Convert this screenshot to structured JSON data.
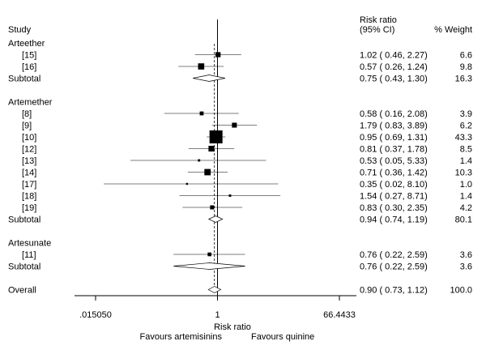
{
  "chart_data": {
    "type": "forest",
    "header": {
      "study": "Study",
      "ratio_line1": "Risk ratio",
      "ratio_line2": "(95% CI)",
      "weight": "% Weight"
    },
    "x_scale": "log",
    "x_ticks": [
      {
        "value": 0.01505,
        "label": ".015050"
      },
      {
        "value": 1,
        "label": "1"
      },
      {
        "value": 66.4433,
        "label": "66.4433"
      }
    ],
    "xlabel": "Risk ratio",
    "favours_left": "Favours artemisinins",
    "favours_right": "Favours quinine",
    "pooled_line": 0.9,
    "rows": [
      {
        "kind": "group",
        "label": "Arteether"
      },
      {
        "kind": "study",
        "label": "[15]",
        "rr": 1.02,
        "lo": 0.46,
        "hi": 2.27,
        "ci_text": "1.02 ( 0.46, 2.27)",
        "weight": 6.6,
        "weight_text": "6.6"
      },
      {
        "kind": "study",
        "label": "[16]",
        "rr": 0.57,
        "lo": 0.26,
        "hi": 1.24,
        "ci_text": "0.57 ( 0.26, 1.24)",
        "weight": 9.8,
        "weight_text": "9.8"
      },
      {
        "kind": "subtotal",
        "label": "Subtotal",
        "rr": 0.75,
        "lo": 0.43,
        "hi": 1.3,
        "ci_text": "0.75 ( 0.43, 1.30)",
        "weight_text": "16.3"
      },
      {
        "kind": "gap"
      },
      {
        "kind": "group",
        "label": "Artemether"
      },
      {
        "kind": "study",
        "label": "[8]",
        "rr": 0.58,
        "lo": 0.16,
        "hi": 2.08,
        "ci_text": "0.58 ( 0.16, 2.08)",
        "weight": 3.9,
        "weight_text": "3.9"
      },
      {
        "kind": "study",
        "label": "[9]",
        "rr": 1.79,
        "lo": 0.83,
        "hi": 3.89,
        "ci_text": "1.79 ( 0.83, 3.89)",
        "weight": 6.2,
        "weight_text": "6.2"
      },
      {
        "kind": "study",
        "label": "[10]",
        "rr": 0.95,
        "lo": 0.69,
        "hi": 1.31,
        "ci_text": "0.95 ( 0.69, 1.31)",
        "weight": 43.3,
        "weight_text": "43.3"
      },
      {
        "kind": "study",
        "label": "[12]",
        "rr": 0.81,
        "lo": 0.37,
        "hi": 1.78,
        "ci_text": "0.81 ( 0.37, 1.78)",
        "weight": 8.5,
        "weight_text": "8.5"
      },
      {
        "kind": "study",
        "label": "[13]",
        "rr": 0.53,
        "lo": 0.05,
        "hi": 5.33,
        "ci_text": "0.53 ( 0.05, 5.33)",
        "weight": 1.4,
        "weight_text": "1.4"
      },
      {
        "kind": "study",
        "label": "[14]",
        "rr": 0.71,
        "lo": 0.36,
        "hi": 1.42,
        "ci_text": "0.71 ( 0.36, 1.42)",
        "weight": 10.3,
        "weight_text": "10.3"
      },
      {
        "kind": "study",
        "label": "[17]",
        "rr": 0.35,
        "lo": 0.02,
        "hi": 8.1,
        "ci_text": "0.35 ( 0.02, 8.10)",
        "weight": 1.0,
        "weight_text": "1.0"
      },
      {
        "kind": "study",
        "label": "[18]",
        "rr": 1.54,
        "lo": 0.27,
        "hi": 8.71,
        "ci_text": "1.54 ( 0.27, 8.71)",
        "weight": 1.4,
        "weight_text": "1.4"
      },
      {
        "kind": "study",
        "label": "[19]",
        "rr": 0.83,
        "lo": 0.3,
        "hi": 2.35,
        "ci_text": "0.83 ( 0.30, 2.35)",
        "weight": 4.2,
        "weight_text": "4.2"
      },
      {
        "kind": "subtotal",
        "label": "Subtotal",
        "rr": 0.94,
        "lo": 0.74,
        "hi": 1.19,
        "ci_text": "0.94 ( 0.74, 1.19)",
        "weight_text": "80.1"
      },
      {
        "kind": "gap"
      },
      {
        "kind": "group",
        "label": "Artesunate"
      },
      {
        "kind": "study",
        "label": "[11]",
        "rr": 0.76,
        "lo": 0.22,
        "hi": 2.59,
        "ci_text": "0.76 ( 0.22, 2.59)",
        "weight": 3.6,
        "weight_text": "3.6"
      },
      {
        "kind": "subtotal",
        "label": "Subtotal",
        "rr": 0.76,
        "lo": 0.22,
        "hi": 2.59,
        "ci_text": "0.76 ( 0.22, 2.59)",
        "weight_text": "3.6"
      },
      {
        "kind": "gap"
      },
      {
        "kind": "overall",
        "label": "Overall",
        "rr": 0.9,
        "lo": 0.73,
        "hi": 1.12,
        "ci_text": "0.90 ( 0.73, 1.12)",
        "weight_text": "100.0"
      }
    ]
  }
}
